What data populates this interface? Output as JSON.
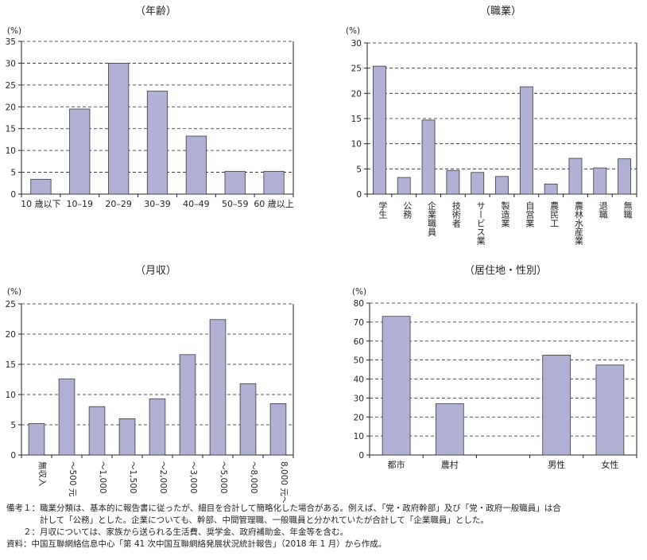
{
  "colors": {
    "bar_fill": "#b1b1d6",
    "bar_stroke": "#3a3a3a",
    "axis": "#231f20",
    "grid": "#231f20"
  },
  "chart_data": [
    {
      "type": "bar",
      "title": "（年齢）",
      "unit": "(%)",
      "categories": [
        "10 歳以下",
        "10–19",
        "20–29",
        "30–39",
        "40–49",
        "50–59",
        "60 歳以上"
      ],
      "values": [
        3.4,
        19.5,
        30.0,
        23.6,
        13.3,
        5.2,
        5.2
      ],
      "ylim": [
        0,
        35
      ],
      "yticks": [
        0,
        5,
        10,
        15,
        20,
        25,
        30,
        35
      ],
      "grid": true,
      "grid_style": "dashed",
      "label_orientation": "horizontal"
    },
    {
      "type": "bar",
      "title": "（職業）",
      "unit": "(%)",
      "categories": [
        "学生",
        "公務",
        "企業職員",
        "技術者",
        "サービス業",
        "製造業",
        "自営業",
        "農民工",
        "農林水産業",
        "退職",
        "無職"
      ],
      "values": [
        25.4,
        3.3,
        14.7,
        4.7,
        4.3,
        3.5,
        21.3,
        2.0,
        7.1,
        5.2,
        7.0
      ],
      "ylim": [
        0,
        30
      ],
      "yticks": [
        0,
        5,
        10,
        15,
        20,
        25,
        30
      ],
      "grid": true,
      "grid_style": "dashed",
      "label_orientation": "vertical"
    },
    {
      "type": "bar",
      "title": "（月収）",
      "unit": "(%)",
      "categories": [
        "無収入",
        "～500 元",
        "～1,000",
        "～1,500",
        "～2,000",
        "～3,000",
        "～5,000",
        "～8,000",
        "8,000 元～"
      ],
      "values": [
        5.2,
        12.6,
        8.0,
        6.0,
        9.3,
        16.6,
        22.4,
        11.8,
        8.5
      ],
      "ylim": [
        0,
        25
      ],
      "yticks": [
        0,
        5,
        10,
        15,
        20,
        25
      ],
      "grid": true,
      "grid_style": "dashed",
      "label_orientation": "rotated"
    },
    {
      "type": "bar",
      "title": "（居住地・性別）",
      "unit": "(%)",
      "categories": [
        "都市",
        "農村",
        "",
        "男性",
        "女性"
      ],
      "values": [
        73.0,
        27.0,
        null,
        52.6,
        47.4
      ],
      "ylim": [
        0,
        80
      ],
      "yticks": [
        0,
        10,
        20,
        30,
        40,
        50,
        60,
        70,
        80
      ],
      "grid": true,
      "grid_style": "dashed",
      "label_orientation": "horizontal"
    }
  ],
  "notes": [
    "備考１：職業分類は、基本的に報告書に従ったが、細目を合計して簡略化した場合がある。例えば、「党・政府幹部」及び「党・政府一般職員」は合",
    "　　　　計して「公務」とした。企業についても、幹部、中間管理職、一般職員と分かれていたが合計して「企業職員」とした。",
    "　　２：月収については、家族から送られる生活費、奨学金、政府補助金、年金等を含む。",
    "資料：中国互聯網絡信息中心「第 41 次中国互聯網絡発展状況統計報告」（2018 年 1 月）から作成。"
  ]
}
